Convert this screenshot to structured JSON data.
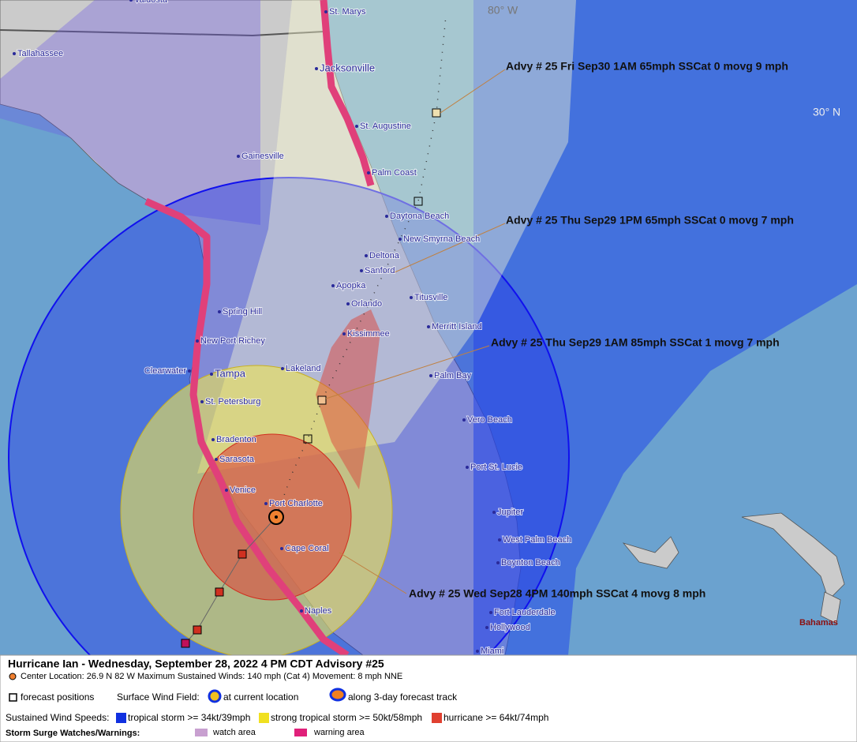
{
  "header": {
    "title": "Hurricane Ian  -  Wednesday, September 28, 2022  4 PM CDT  Advisory #25",
    "center_location": "Center Location: 26.9 N  82 W   Maximum Sustained Winds: 140 mph (Cat 4) Movement: 8 mph NNE"
  },
  "map": {
    "cities": [
      "Valdosta",
      "St. Marys",
      "Tallahassee",
      "Jacksonville",
      "St. Augustine",
      "Gainesville",
      "Palm Coast",
      "Daytona Beach",
      "New Smyrna Beach",
      "Deltona",
      "Sanford",
      "Apopka",
      "Orlando",
      "Titusville",
      "Spring Hill",
      "Merritt Island",
      "Kissimmee",
      "New Port Richey",
      "Clearwater",
      "Tampa",
      "Lakeland",
      "Palm Bay",
      "St. Petersburg",
      "Vero Beach",
      "Bradenton",
      "Sarasota",
      "Port St. Lucie",
      "Venice",
      "Port Charlotte",
      "Jupiter",
      "West Palm Beach",
      "Cape Coral",
      "Boynton Beach",
      "Naples",
      "Fort Lauderdale",
      "Hollywood",
      "Miami"
    ],
    "longitude_label": "80° W",
    "latitude_label": "30° N",
    "bahamas": "Bahamas",
    "advisories": [
      "Advy # 25 Fri Sep30 1AM  65mph SSCat 0 movg 9 mph",
      "Advy # 25 Thu Sep29 1PM  65mph SSCat 0 movg 7 mph",
      "Advy # 25 Thu Sep29 1AM  85mph SSCat 1 movg 7 mph",
      "Advy # 25 Wed Sep28 4PM  140mph SSCat 4 movg 8 mph"
    ]
  },
  "legend": {
    "forecast_positions": "forecast positions",
    "surface_wind_field": "Surface Wind Field:",
    "at_current_location": "at current location",
    "along_track": "along 3-day forecast track",
    "sustained_wind_speeds": "Sustained Wind Speeds:",
    "tropical_storm": "tropical storm >= 34kt/39mph",
    "strong_tropical_storm": "strong tropical storm >= 50kt/58mph",
    "hurricane": "hurricane >= 64kt/74mph",
    "storm_surge": "Storm Surge Watches/Warnings:",
    "watch_area": "watch area",
    "warning_area": "warning area"
  }
}
